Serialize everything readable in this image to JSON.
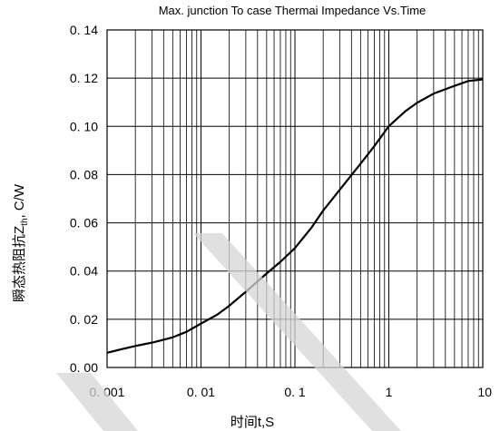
{
  "chart_data": {
    "type": "line",
    "title": "Max. junction To case Thermai Impedance Vs.Time",
    "xlabel": "时间t,S",
    "ylabel": {
      "prefix": "瞬态热阻抗",
      "symbol": "Z",
      "subscript": "th",
      "suffix": ", C/W"
    },
    "xscale": "log",
    "xlim": [
      0.001,
      10
    ],
    "ylim": [
      0.0,
      0.14
    ],
    "grid": true,
    "x_tick_labels": [
      {
        "value": 0.001,
        "label": "0. 001"
      },
      {
        "value": 0.01,
        "label": "0. 01"
      },
      {
        "value": 0.1,
        "label": "0. 1"
      },
      {
        "value": 1,
        "label": "1"
      },
      {
        "value": 10,
        "label": "10"
      }
    ],
    "y_tick_labels": [
      {
        "value": 0.0,
        "label": "0. 00"
      },
      {
        "value": 0.02,
        "label": "0. 02"
      },
      {
        "value": 0.04,
        "label": "0. 04"
      },
      {
        "value": 0.06,
        "label": "0. 06"
      },
      {
        "value": 0.08,
        "label": "0. 08"
      },
      {
        "value": 0.1,
        "label": "0. 10"
      },
      {
        "value": 0.12,
        "label": "0. 12"
      },
      {
        "value": 0.14,
        "label": "0. 14"
      }
    ],
    "series": [
      {
        "color": "#000000",
        "x": [
          0.001,
          0.0015,
          0.002,
          0.003,
          0.005,
          0.007,
          0.01,
          0.015,
          0.02,
          0.03,
          0.05,
          0.07,
          0.1,
          0.15,
          0.2,
          0.3,
          0.5,
          0.7,
          1,
          1.5,
          2,
          3,
          5,
          7,
          10
        ],
        "y": [
          0.0061,
          0.0078,
          0.0089,
          0.0103,
          0.0125,
          0.0148,
          0.0182,
          0.022,
          0.0256,
          0.0314,
          0.039,
          0.0438,
          0.0495,
          0.058,
          0.0651,
          0.0737,
          0.0845,
          0.0918,
          0.1001,
          0.1063,
          0.1098,
          0.1136,
          0.1168,
          0.1188,
          0.1195
        ]
      }
    ]
  },
  "watermark": {
    "color": "#d6d6d6"
  }
}
